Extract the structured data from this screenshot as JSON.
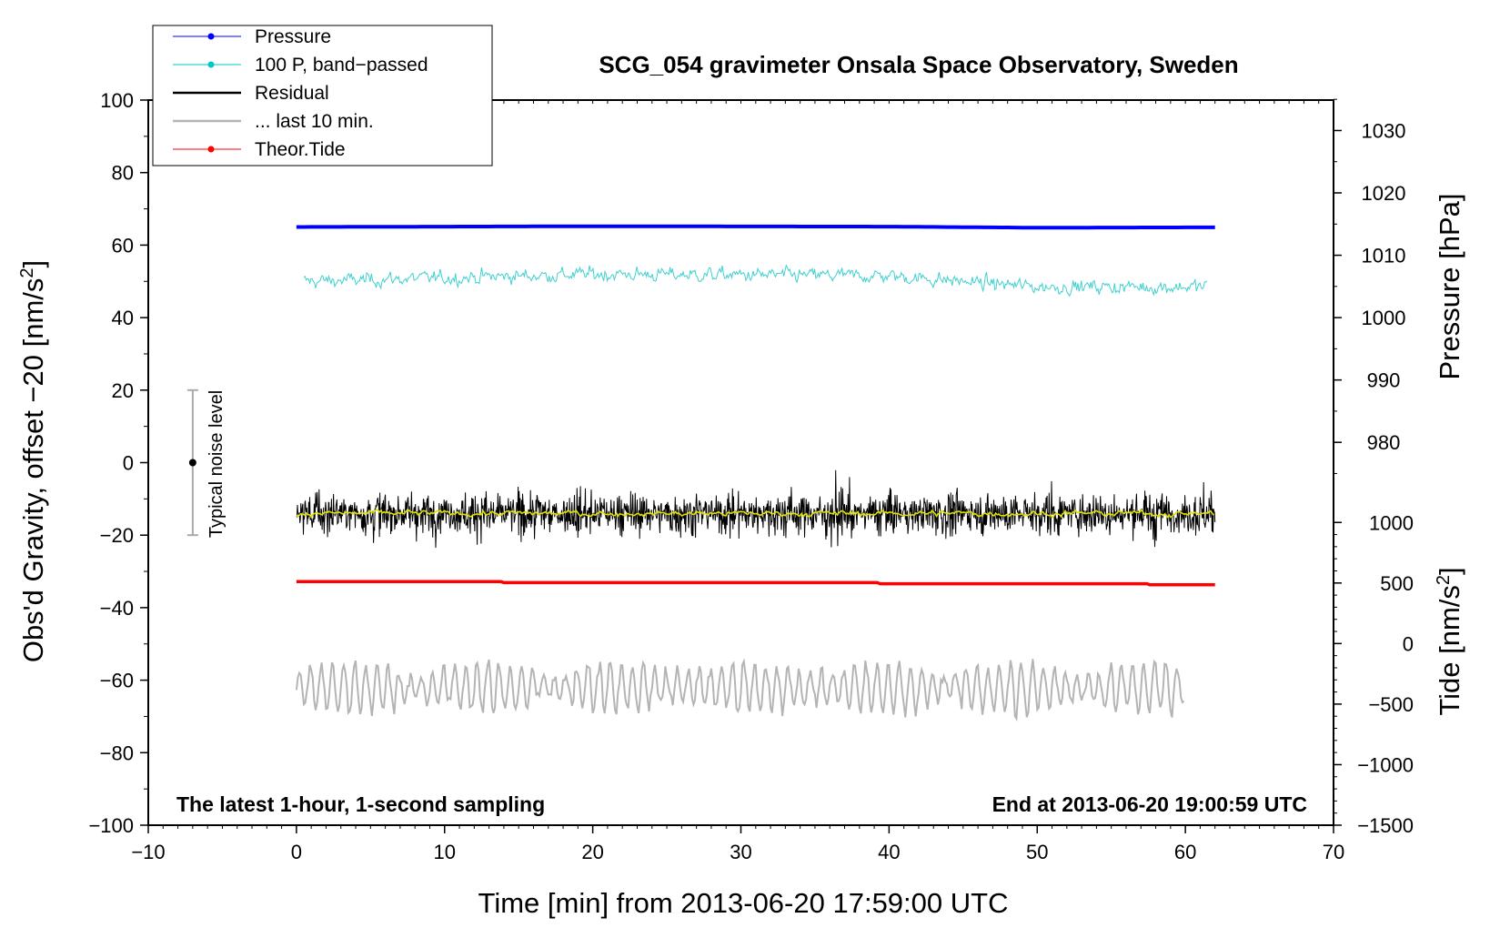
{
  "chart_data": {
    "type": "line",
    "title": "SCG_054 gravimeter Onsala Space Observatory, Sweden",
    "xlabel": "Time [min] from 2013-06-20 17:59:00 UTC",
    "ylabel_left_main": "Obs'd Gravity, offset −20 [nm/s",
    "ylabel_left_sup": "2",
    "ylabel_left_end": "]",
    "ylabel_right_pressure": "Pressure [hPa]",
    "ylabel_right_tide_main": "Tide [nm/s",
    "ylabel_right_tide_sup": "2",
    "ylabel_right_tide_end": "]",
    "xlim": [
      -10,
      70
    ],
    "ylim": [
      -100,
      100
    ],
    "x_ticks": [
      "−10",
      "0",
      "10",
      "20",
      "30",
      "40",
      "50",
      "60",
      "70"
    ],
    "y_ticks_left": [
      "100",
      "80",
      "60",
      "40",
      "20",
      "0",
      "−20",
      "−40",
      "−60",
      "−80",
      "−100"
    ],
    "pressure_ticks": [
      "1030",
      "1020",
      "1010",
      "1000",
      "990",
      "980"
    ],
    "pressure_tick_values": [
      1030,
      1020,
      1010,
      1000,
      990,
      980
    ],
    "pressure_scale": {
      "ref_hpa": 1000,
      "ref_gravity": 40,
      "gravity_per_hpa": 1.72
    },
    "tide_ticks": [
      "1000",
      "500",
      "0",
      "−500",
      "−1000",
      "−1500"
    ],
    "tide_tick_values": [
      1000,
      500,
      0,
      -500,
      -1000,
      -1500
    ],
    "tide_scale": {
      "ref_tide": -1500,
      "ref_gravity": -100,
      "gravity_per_tide": 0.0334
    },
    "legend": [
      {
        "label": "Pressure",
        "color": "#0000ff",
        "marker": true
      },
      {
        "label": "100 P, band−passed",
        "color": "#00c8c8",
        "marker": true
      },
      {
        "label": "Residual",
        "color": "#000000",
        "marker": false
      },
      {
        "label": "... last 10 min.",
        "color": "#b4b4b4",
        "marker": false
      },
      {
        "label": "Theor.Tide",
        "color": "#ff0000",
        "marker": true
      }
    ],
    "series": [
      {
        "name": "Pressure",
        "color": "#0000ff",
        "x_range": [
          0,
          62
        ],
        "level": 65,
        "points": [
          [
            0,
            65
          ],
          [
            20,
            65.2
          ],
          [
            40,
            65.1
          ],
          [
            50,
            64.8
          ],
          [
            62,
            64.9
          ]
        ]
      },
      {
        "name": "100 P, band-passed",
        "color": "#40d0d0",
        "x_range": [
          0.5,
          61.5
        ],
        "baseline": [
          [
            0.5,
            50
          ],
          [
            20,
            52
          ],
          [
            40,
            51.5
          ],
          [
            50,
            48.5
          ],
          [
            62,
            48.5
          ]
        ],
        "noise_amplitude": 1.5
      },
      {
        "name": "Residual",
        "color": "#000000",
        "x_range": [
          0,
          62
        ],
        "baseline": -14,
        "noise_amplitude": 4.5
      },
      {
        "name": "Residual smoothed",
        "color": "#e0e000",
        "x_range": [
          0,
          62
        ],
        "baseline": -14
      },
      {
        "name": "Theor.Tide",
        "color": "#ff0000",
        "x_range": [
          0,
          62
        ],
        "points": [
          [
            0,
            -32.8
          ],
          [
            13.8,
            -32.8
          ],
          [
            14,
            -33.1
          ],
          [
            39.2,
            -33.1
          ],
          [
            39.4,
            -33.4
          ],
          [
            57.4,
            -33.4
          ],
          [
            57.6,
            -33.7
          ],
          [
            62,
            -33.7
          ]
        ]
      },
      {
        "name": "... last 10 min.",
        "color": "#b4b4b4",
        "x_range": [
          0,
          60
        ],
        "baseline": -62,
        "noise_amplitude": 5
      }
    ],
    "noise_bar": {
      "label": "Typical noise level",
      "x": -7,
      "center": 0,
      "low": -20,
      "high": 20
    },
    "annotation_left": "The latest 1-hour, 1-second sampling",
    "annotation_right": "End at 2013-06-20 19:00:59 UTC"
  }
}
